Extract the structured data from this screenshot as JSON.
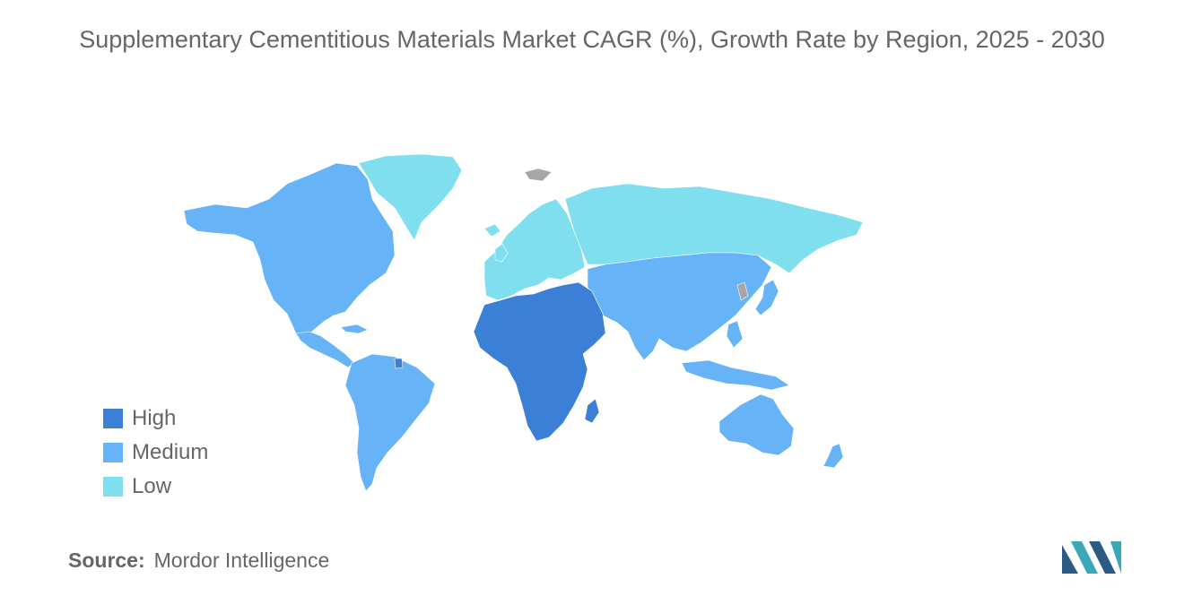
{
  "title": "Supplementary Cementitious Materials Market CAGR (%), Growth Rate by Region, 2025 - 2030",
  "legend": [
    {
      "label": "High",
      "color": "#3b7fd6"
    },
    {
      "label": "Medium",
      "color": "#66b3f7"
    },
    {
      "label": "Low",
      "color": "#7fdfef"
    }
  ],
  "regions": [
    {
      "name": "North America",
      "level": "Medium"
    },
    {
      "name": "South America",
      "level": "Medium"
    },
    {
      "name": "Europe",
      "level": "Low"
    },
    {
      "name": "Russia",
      "level": "Low"
    },
    {
      "name": "Greenland",
      "level": "Low"
    },
    {
      "name": "Asia-Pacific",
      "level": "Medium"
    },
    {
      "name": "Australia",
      "level": "Medium"
    },
    {
      "name": "Middle East and Africa",
      "level": "High"
    }
  ],
  "no_data_color": "#a6a6a6",
  "source": {
    "label": "Source:",
    "value": "Mordor Intelligence"
  },
  "logo": {
    "icon": "mordor-intelligence-logo",
    "colors": [
      "#2b5a84",
      "#3aa7b8"
    ]
  }
}
